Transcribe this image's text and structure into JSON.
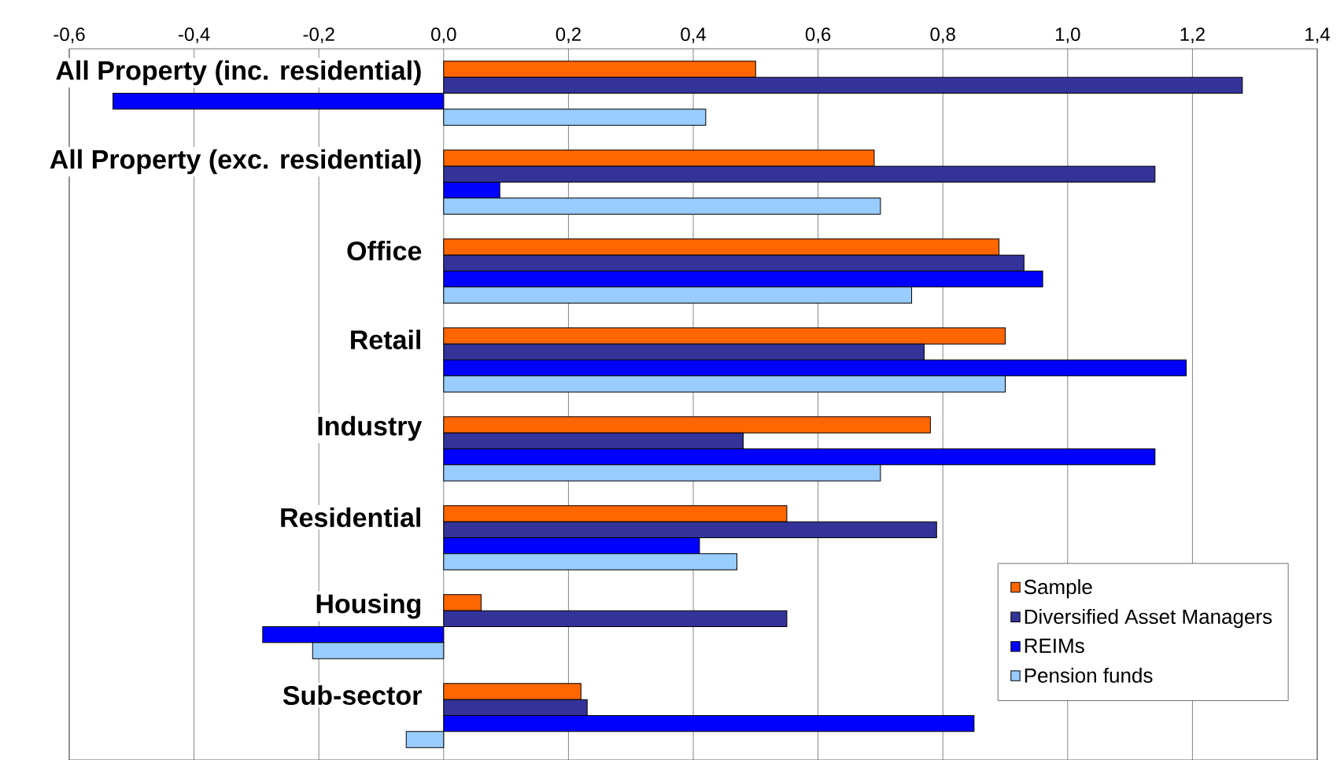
{
  "chart_data": {
    "type": "bar",
    "orientation": "horizontal",
    "categories": [
      "All Property (inc. residential)",
      "All Property (exc. residential)",
      "Office",
      "Retail",
      "Industry",
      "Residential",
      "Housing",
      "Sub-sector"
    ],
    "series": [
      {
        "name": "Sample",
        "color": "#ff6600",
        "values": [
          0.5,
          0.69,
          0.89,
          0.9,
          0.78,
          0.55,
          0.06,
          0.22
        ]
      },
      {
        "name": "Diversified Asset Managers",
        "color": "#333399",
        "values": [
          1.28,
          1.14,
          0.93,
          0.77,
          0.48,
          0.79,
          0.55,
          0.23
        ]
      },
      {
        "name": "REIMs",
        "color": "#0000ff",
        "values": [
          -0.53,
          0.09,
          0.96,
          1.19,
          1.14,
          0.41,
          -0.29,
          0.85
        ]
      },
      {
        "name": "Pension funds",
        "color": "#99ccff",
        "values": [
          0.42,
          0.7,
          0.75,
          0.9,
          0.7,
          0.47,
          -0.21,
          -0.06
        ]
      }
    ],
    "xlim": [
      -0.6,
      1.4
    ],
    "xticks": [
      {
        "value": -0.6,
        "label": "-0,6"
      },
      {
        "value": -0.4,
        "label": "-0,4"
      },
      {
        "value": -0.2,
        "label": "-0,2"
      },
      {
        "value": 0,
        "label": "0,0"
      },
      {
        "value": 0.2,
        "label": "0,2"
      },
      {
        "value": 0.4,
        "label": "0,4"
      },
      {
        "value": 0.6,
        "label": "0,6"
      },
      {
        "value": 0.8,
        "label": "0,8"
      },
      {
        "value": 1.0,
        "label": "1,0"
      },
      {
        "value": 1.2,
        "label": "1,2"
      },
      {
        "value": 1.4,
        "label": "1,4"
      }
    ],
    "grid": "x",
    "legend": "bottom right"
  }
}
